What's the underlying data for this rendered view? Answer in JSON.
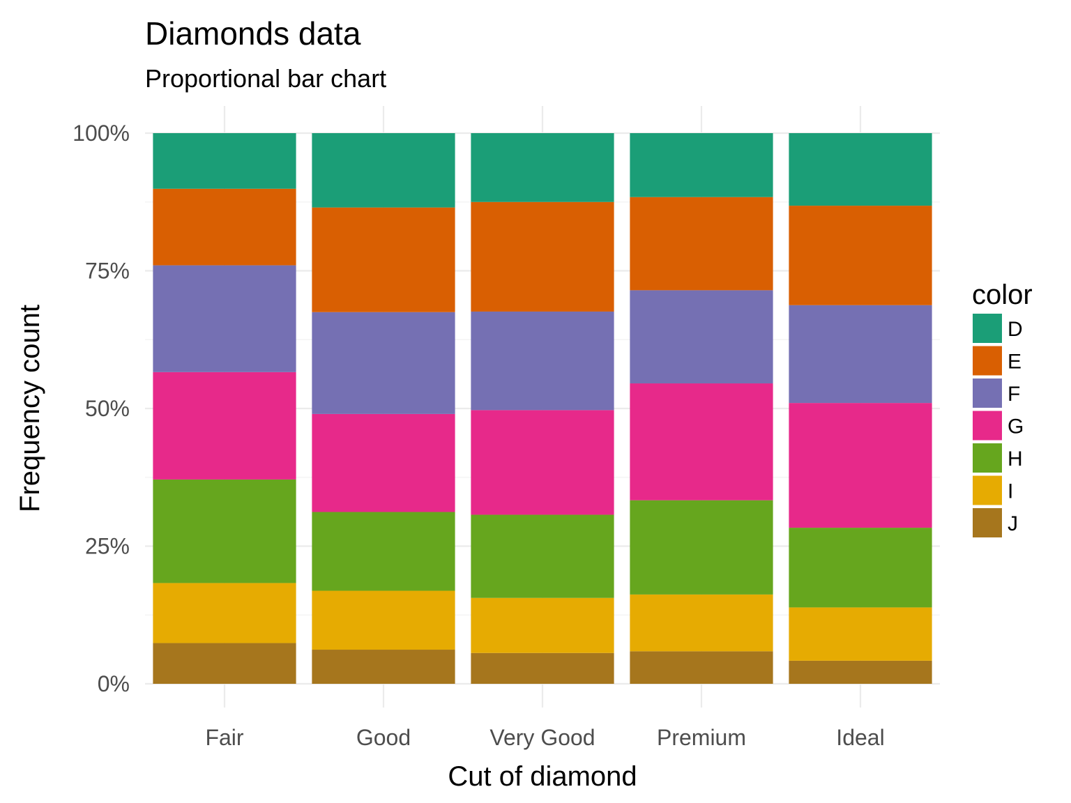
{
  "chart_data": {
    "type": "bar",
    "stacked": "proportional",
    "title": "Diamonds data",
    "subtitle": "Proportional bar chart",
    "xlabel": "Cut of diamond",
    "ylabel": "Frequency count",
    "ylim": [
      0,
      100
    ],
    "y_ticks": [
      0,
      25,
      50,
      75,
      100
    ],
    "y_tick_labels": [
      "0%",
      "25%",
      "50%",
      "75%",
      "100%"
    ],
    "grid": true,
    "legend_position": "right",
    "legend_title": "color",
    "categories": [
      "Fair",
      "Good",
      "Very Good",
      "Premium",
      "Ideal"
    ],
    "series": [
      {
        "name": "D",
        "color": "#1B9E77",
        "values": [
          10.1,
          13.5,
          12.5,
          11.6,
          13.2
        ]
      },
      {
        "name": "E",
        "color": "#D95F02",
        "values": [
          13.9,
          19.0,
          19.9,
          16.9,
          18.1
        ]
      },
      {
        "name": "F",
        "color": "#7570B3",
        "values": [
          19.4,
          18.5,
          17.9,
          16.9,
          17.8
        ]
      },
      {
        "name": "G",
        "color": "#E7298A",
        "values": [
          19.5,
          17.8,
          19.0,
          21.2,
          22.7
        ]
      },
      {
        "name": "H",
        "color": "#66A61E",
        "values": [
          18.8,
          14.3,
          15.1,
          17.1,
          14.5
        ]
      },
      {
        "name": "I",
        "color": "#E6AB02",
        "values": [
          10.9,
          10.7,
          10.0,
          10.3,
          9.7
        ]
      },
      {
        "name": "J",
        "color": "#A6761D",
        "values": [
          7.4,
          6.2,
          5.6,
          5.9,
          4.2
        ]
      }
    ]
  }
}
